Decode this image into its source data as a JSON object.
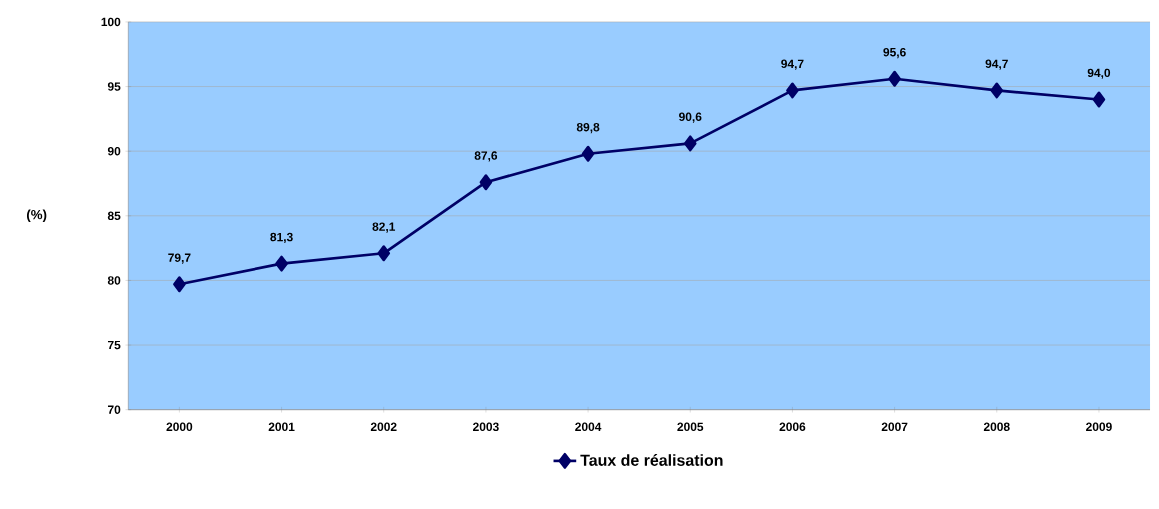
{
  "chart_data": {
    "type": "line",
    "ylabel": "(%)",
    "categories": [
      "2000",
      "2001",
      "2002",
      "2003",
      "2004",
      "2005",
      "2006",
      "2007",
      "2008",
      "2009"
    ],
    "series": [
      {
        "name": "Taux de réalisation",
        "color": "#000066",
        "values": [
          79.7,
          81.3,
          82.1,
          87.6,
          89.8,
          90.6,
          94.7,
          95.6,
          94.7,
          94.0
        ],
        "value_labels": [
          "79,7",
          "81,3",
          "82,1",
          "87,6",
          "89,8",
          "90,6",
          "94,7",
          "95,6",
          "94,7",
          "94,0"
        ]
      }
    ],
    "ylim": [
      70,
      100
    ],
    "yticks": [
      70,
      75,
      80,
      85,
      90,
      95,
      100
    ],
    "grid": "y",
    "legend": "bottom",
    "marker": "diamond"
  }
}
